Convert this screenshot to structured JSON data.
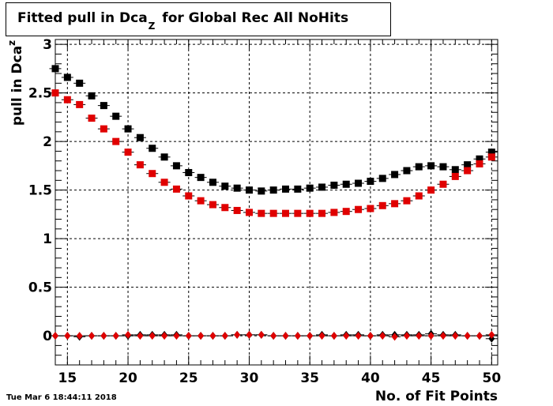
{
  "chart_data": {
    "type": "scatter",
    "title": {
      "main": "Fitted pull in Dca",
      "sub": "Z",
      "rest": "for Global Rec All NoHits"
    },
    "xlabel": "No. of Fit Points",
    "ylabel": {
      "main": "pull in Dca",
      "sub": "z"
    },
    "xlim": [
      14,
      50.5
    ],
    "ylim": [
      -0.3,
      3.05
    ],
    "xticks": [
      15,
      20,
      25,
      30,
      35,
      40,
      45,
      50
    ],
    "yticks": [
      0,
      0.5,
      1,
      1.5,
      2,
      2.5,
      3
    ],
    "ytick_labels": [
      "0",
      "0.5",
      "1",
      "1.5",
      "2",
      "2.5",
      "3"
    ],
    "grid": true,
    "x": [
      14,
      15,
      16,
      17,
      18,
      19,
      20,
      21,
      22,
      23,
      24,
      25,
      26,
      27,
      28,
      29,
      30,
      31,
      32,
      33,
      34,
      35,
      36,
      37,
      38,
      39,
      40,
      41,
      42,
      43,
      44,
      45,
      46,
      47,
      48,
      49,
      50
    ],
    "series": [
      {
        "marker": "square",
        "color": "#000000",
        "values": [
          2.75,
          2.66,
          2.6,
          2.47,
          2.37,
          2.26,
          2.13,
          2.04,
          1.93,
          1.84,
          1.75,
          1.68,
          1.63,
          1.58,
          1.54,
          1.52,
          1.5,
          1.49,
          1.5,
          1.51,
          1.51,
          1.52,
          1.53,
          1.55,
          1.56,
          1.57,
          1.59,
          1.62,
          1.66,
          1.7,
          1.74,
          1.75,
          1.74,
          1.71,
          1.76,
          1.82,
          1.89
        ]
      },
      {
        "marker": "square",
        "color": "#e00000",
        "values": [
          2.5,
          2.43,
          2.38,
          2.24,
          2.13,
          2.0,
          1.89,
          1.76,
          1.67,
          1.58,
          1.51,
          1.44,
          1.39,
          1.35,
          1.32,
          1.29,
          1.27,
          1.26,
          1.26,
          1.26,
          1.26,
          1.26,
          1.26,
          1.27,
          1.28,
          1.3,
          1.31,
          1.34,
          1.36,
          1.39,
          1.44,
          1.5,
          1.56,
          1.64,
          1.7,
          1.77,
          1.84
        ]
      },
      {
        "marker": "diamond",
        "color": "#000000",
        "values": [
          0.0,
          0.0,
          -0.01,
          0.0,
          0.0,
          0.0,
          0.0,
          0.01,
          0.01,
          0.01,
          0.01,
          0.0,
          0.0,
          0.0,
          0.0,
          0.01,
          0.01,
          0.01,
          0.0,
          0.0,
          0.0,
          0.0,
          0.01,
          0.0,
          0.01,
          0.01,
          0.0,
          0.01,
          0.01,
          0.01,
          0.01,
          0.02,
          0.01,
          0.01,
          0.0,
          0.0,
          -0.03
        ]
      },
      {
        "marker": "diamond",
        "color": "#e00000",
        "values": [
          0.0,
          0.0,
          0.0,
          0.0,
          0.0,
          0.0,
          0.01,
          0.0,
          0.0,
          0.0,
          0.0,
          0.0,
          0.0,
          0.0,
          0.0,
          0.01,
          0.01,
          0.01,
          0.0,
          0.0,
          0.0,
          0.0,
          0.0,
          0.0,
          0.0,
          0.0,
          0.0,
          0.0,
          -0.01,
          0.0,
          0.0,
          0.0,
          0.0,
          0.0,
          0.0,
          0.0,
          0.01
        ]
      }
    ]
  },
  "timestamp": "Tue Mar  6 18:44:11 2018"
}
